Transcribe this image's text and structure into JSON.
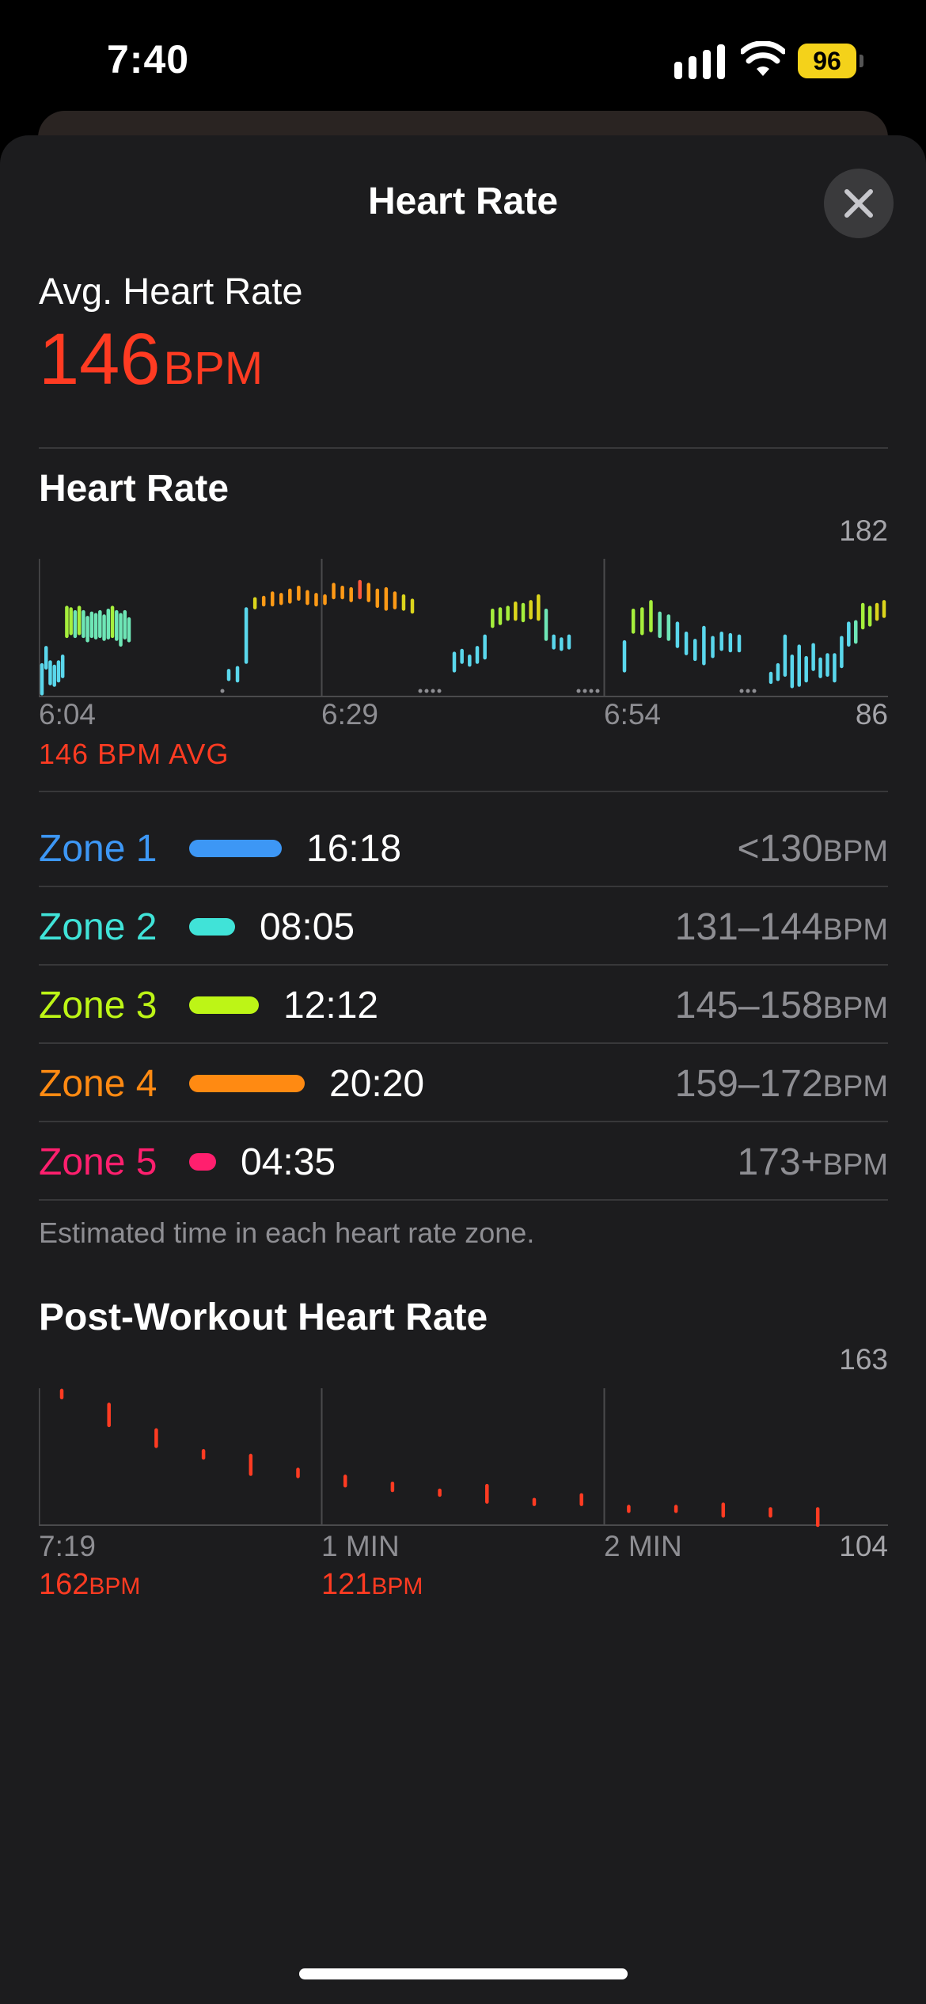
{
  "status_bar": {
    "time": "7:40",
    "battery": "96"
  },
  "sheet": {
    "title": "Heart Rate"
  },
  "summary": {
    "label": "Avg. Heart Rate",
    "value": "146",
    "unit": "BPM"
  },
  "heart_rate_section": {
    "title": "Heart Rate",
    "y_max": "182",
    "y_min": "86",
    "x_labels": [
      "6:04",
      "6:29",
      "6:54"
    ],
    "avg_caption": "146 BPM AVG"
  },
  "zones": [
    {
      "name": "Zone 1",
      "time": "16:18",
      "range": "<130",
      "unit": "BPM",
      "color": "#3d97f5",
      "fraction": 0.8
    },
    {
      "name": "Zone 2",
      "time": "08:05",
      "range": "131–144",
      "unit": "BPM",
      "color": "#40e3d8",
      "fraction": 0.4
    },
    {
      "name": "Zone 3",
      "time": "12:12",
      "range": "145–158",
      "unit": "BPM",
      "color": "#bdf516",
      "fraction": 0.6
    },
    {
      "name": "Zone 4",
      "time": "20:20",
      "range": "159–172",
      "unit": "BPM",
      "color": "#ff8a12",
      "fraction": 1.0
    },
    {
      "name": "Zone 5",
      "time": "04:35",
      "range": "173+",
      "unit": "BPM",
      "color": "#ff1f6e",
      "fraction": 0.23
    }
  ],
  "zones_footnote": "Estimated time in each heart rate zone.",
  "post_workout": {
    "title": "Post-Workout Heart Rate",
    "y_max": "163",
    "y_min": "104",
    "x_labels": [
      "7:19",
      "1 MIN",
      "2 MIN"
    ],
    "values": [
      {
        "value": "162",
        "unit": "BPM"
      },
      {
        "value": "121",
        "unit": "BPM"
      }
    ]
  },
  "chart_data": [
    {
      "type": "bar",
      "title": "Heart Rate",
      "series": [
        {
          "name": "Heart Rate (BPM range per interval)",
          "ranges": [
            [
              88,
              108
            ],
            [
              106,
              120
            ],
            [
              95,
              110
            ],
            [
              94,
              107
            ],
            [
              97,
              110
            ],
            [
              100,
              114
            ],
            [
              128,
              148
            ],
            [
              130,
              147
            ],
            [
              128,
              145
            ],
            [
              130,
              148
            ],
            [
              128,
              145
            ],
            [
              125,
              141
            ],
            [
              128,
              144
            ],
            [
              127,
              143
            ],
            [
              128,
              145
            ],
            [
              126,
              142
            ],
            [
              127,
              146
            ],
            [
              128,
              148
            ],
            [
              126,
              145
            ],
            [
              122,
              143
            ],
            [
              127,
              145
            ],
            [
              125,
              140
            ],
            [
              98,
              104
            ],
            [
              97,
              106
            ],
            [
              110,
              147
            ],
            [
              148,
              154
            ],
            [
              150,
              155
            ],
            [
              150,
              158
            ],
            [
              151,
              157
            ],
            [
              152,
              160
            ],
            [
              154,
              162
            ],
            [
              151,
              159
            ],
            [
              150,
              157
            ],
            [
              151,
              156
            ],
            [
              155,
              164
            ],
            [
              155,
              162
            ],
            [
              153,
              161
            ],
            [
              155,
              166
            ],
            [
              153,
              164
            ],
            [
              149,
              160
            ],
            [
              147,
              161
            ],
            [
              148,
              158
            ],
            [
              147,
              156
            ],
            [
              145,
              153
            ],
            [
              104,
              116
            ],
            [
              110,
              118
            ],
            [
              108,
              114
            ],
            [
              110,
              120
            ],
            [
              113,
              128
            ],
            [
              135,
              146
            ],
            [
              137,
              147
            ],
            [
              140,
              148
            ],
            [
              140,
              151
            ],
            [
              139,
              150
            ],
            [
              141,
              152
            ],
            [
              140,
              156
            ],
            [
              126,
              146
            ],
            [
              120,
              128
            ],
            [
              119,
              126
            ],
            [
              120,
              128
            ],
            [
              104,
              124
            ],
            [
              131,
              146
            ],
            [
              130,
              147
            ],
            [
              132,
              152
            ],
            [
              128,
              144
            ],
            [
              126,
              142
            ],
            [
              121,
              137
            ],
            [
              116,
              130
            ],
            [
              112,
              125
            ],
            [
              109,
              134
            ],
            [
              114,
              127
            ],
            [
              119,
              130
            ],
            [
              118,
              129
            ],
            [
              118,
              128
            ],
            [
              96,
              102
            ],
            [
              98,
              108
            ],
            [
              101,
              128
            ],
            [
              93,
              114
            ],
            [
              94,
              121
            ],
            [
              97,
              113
            ],
            [
              105,
              122
            ],
            [
              100,
              112
            ],
            [
              101,
              115
            ],
            [
              97,
              115
            ],
            [
              107,
              127
            ],
            [
              122,
              137
            ],
            [
              124,
              138
            ],
            [
              134,
              150
            ],
            [
              136,
              148
            ],
            [
              140,
              150
            ],
            [
              142,
              152
            ]
          ]
        }
      ],
      "x_labels": [
        "6:04",
        "6:29",
        "6:54"
      ],
      "ylim": [
        86,
        182
      ],
      "annotation": "146 BPM AVG"
    },
    {
      "type": "scatter",
      "title": "Post-Workout Heart Rate",
      "series": [
        {
          "name": "Post-Workout Heart Rate",
          "ranges": [
            [
              159,
              162
            ],
            [
              147,
              156
            ],
            [
              138,
              145
            ],
            [
              133,
              136
            ],
            [
              126,
              134
            ],
            [
              125,
              128
            ],
            [
              121,
              125
            ],
            [
              119,
              122
            ],
            [
              117,
              119
            ],
            [
              114,
              121
            ],
            [
              113,
              115
            ],
            [
              113,
              117
            ],
            [
              110,
              112
            ],
            [
              110,
              112
            ],
            [
              108,
              113
            ],
            [
              108,
              111
            ],
            [
              104,
              111
            ]
          ]
        }
      ],
      "x_labels": [
        "7:19",
        "1 MIN",
        "2 MIN"
      ],
      "ylim": [
        104,
        163
      ],
      "annotations": [
        "162 BPM",
        "121 BPM"
      ]
    }
  ]
}
